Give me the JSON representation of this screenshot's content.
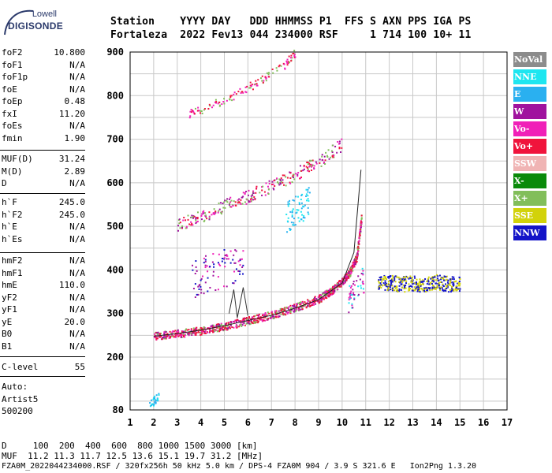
{
  "logo": {
    "brand": "Lowell",
    "name": "DIGISONDE"
  },
  "header": {
    "line1": "Station    YYYY DAY   DDD HHMMSS P1  FFS S AXN PPS IGA PS",
    "line2": "Fortaleza  2022 Fev13 044 234000 RSF     1 714 100 10+ 11"
  },
  "params_group1": [
    {
      "k": "foF2",
      "v": "10.800"
    },
    {
      "k": "foF1",
      "v": "N/A"
    },
    {
      "k": "foF1p",
      "v": "N/A"
    },
    {
      "k": "foE",
      "v": "N/A"
    },
    {
      "k": "foEp",
      "v": "0.48"
    },
    {
      "k": "fxI",
      "v": "11.20"
    },
    {
      "k": "foEs",
      "v": "N/A"
    },
    {
      "k": "fmin",
      "v": "1.90"
    }
  ],
  "params_group2": [
    {
      "k": "MUF(D)",
      "v": "31.24"
    },
    {
      "k": "M(D)",
      "v": "2.89"
    },
    {
      "k": "D",
      "v": "N/A"
    }
  ],
  "params_group3": [
    {
      "k": "h`F",
      "v": "245.0"
    },
    {
      "k": "h`F2",
      "v": "245.0"
    },
    {
      "k": "h`E",
      "v": "N/A"
    },
    {
      "k": "h`Es",
      "v": "N/A"
    }
  ],
  "params_group4": [
    {
      "k": "hmF2",
      "v": "N/A"
    },
    {
      "k": "hmF1",
      "v": "N/A"
    },
    {
      "k": "hmE",
      "v": "110.0"
    },
    {
      "k": "yF2",
      "v": "N/A"
    },
    {
      "k": "yF1",
      "v": "N/A"
    },
    {
      "k": "yE",
      "v": "20.0"
    },
    {
      "k": "B0",
      "v": "N/A"
    },
    {
      "k": "B1",
      "v": "N/A"
    }
  ],
  "params_group5": [
    {
      "k": "C-level",
      "v": "55"
    }
  ],
  "auto": {
    "line1": "Auto:",
    "line2": "Artist5",
    "line3": "500200"
  },
  "legend": [
    {
      "label": "NoVal",
      "color": "#8c8c8c"
    },
    {
      "label": "NNE",
      "color": "#1ee6f0"
    },
    {
      "label": "E",
      "color": "#2ab0f0"
    },
    {
      "label": "W",
      "color": "#a0129e"
    },
    {
      "label": "Vo-",
      "color": "#f020b8"
    },
    {
      "label": "Vo+",
      "color": "#f0143c"
    },
    {
      "label": "SSW",
      "color": "#f0b4b4"
    },
    {
      "label": "X-",
      "color": "#0a8a0a"
    },
    {
      "label": "X+",
      "color": "#82be5a"
    },
    {
      "label": "SSE",
      "color": "#d2d20a"
    },
    {
      "label": "NNW",
      "color": "#1414c8"
    }
  ],
  "footer": {
    "line1": "D     100  200  400  600  800 1000 1500 3000 [km]",
    "line2": "MUF  11.2 11.3 11.7 12.5 13.6 15.1 19.7 31.2 [MHz]",
    "line3": "FZA0M_2022044234000.RSF / 320fx256h 50 kHz 5.0 km / DPS-4 FZA0M 904 / 3.9 S 321.6 E   Ion2Png 1.3.20"
  },
  "chart_data": {
    "type": "scatter",
    "x_ticks": [
      1,
      2,
      3,
      4,
      5,
      6,
      7,
      8,
      9,
      10,
      11,
      12,
      13,
      14,
      15,
      16,
      17
    ],
    "y_ticks": [
      80,
      200,
      300,
      400,
      500,
      600,
      700,
      800,
      900
    ],
    "xlim": [
      1,
      17
    ],
    "ylim": [
      80,
      900
    ],
    "grid": true,
    "legend_position": "right",
    "traces": [
      {
        "name": "O-trace F1 reflection",
        "x": [
          2.0,
          3.0,
          4.0,
          5.0,
          6.0,
          7.0,
          8.0,
          9.0,
          9.5,
          10.0,
          10.3,
          10.6,
          10.8
        ],
        "y": [
          250,
          255,
          262,
          272,
          285,
          298,
          315,
          335,
          352,
          375,
          395,
          430,
          520
        ]
      },
      {
        "name": "Second hop",
        "x": [
          3.0,
          4.0,
          5.0,
          6.0,
          7.0,
          8.0,
          9.0,
          10.0
        ],
        "y": [
          505,
          525,
          548,
          570,
          595,
          620,
          650,
          690
        ]
      },
      {
        "name": "Third hop",
        "x": [
          3.5,
          4.5,
          5.5,
          6.5,
          7.5,
          8.0
        ],
        "y": [
          760,
          780,
          805,
          835,
          870,
          900
        ]
      },
      {
        "name": "Spread F echoes",
        "x": [
          11.5,
          12.0,
          12.5,
          13.0,
          13.5,
          14.0,
          14.5,
          15.0
        ],
        "y": [
          370,
          372,
          368,
          371,
          366,
          373,
          369,
          370
        ]
      },
      {
        "name": "Profile line",
        "x": [
          2.0,
          3.0,
          4.0,
          5.0,
          6.0,
          7.0,
          8.0,
          9.0,
          10.0,
          10.5,
          10.8
        ],
        "y": [
          248,
          254,
          262,
          272,
          284,
          296,
          312,
          332,
          370,
          440,
          630
        ]
      }
    ]
  }
}
